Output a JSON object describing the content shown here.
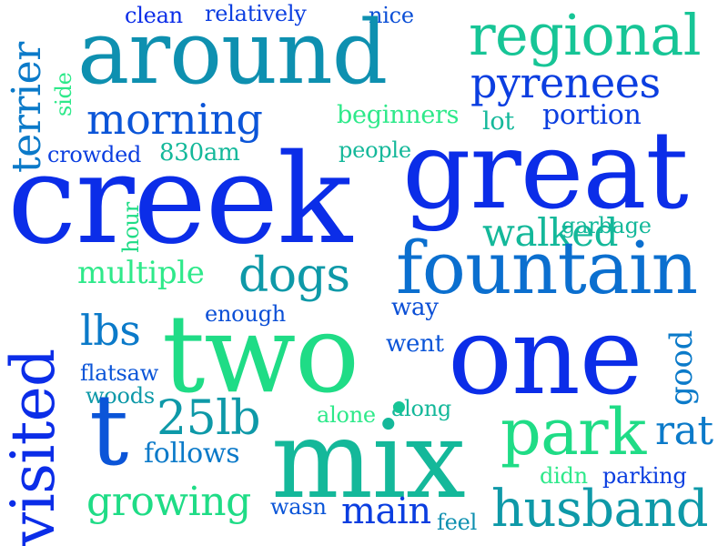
{
  "palette": {
    "blue": "#0b2de8",
    "royal": "#0b55d8",
    "ocean": "#0b7ac9",
    "teal": "#0e99a8",
    "sea": "#14b89a",
    "mint": "#1fdc86",
    "spring": "#2ee98a"
  },
  "words": [
    {
      "text": "clean"
    },
    {
      "text": "relatively"
    },
    {
      "text": "nice"
    },
    {
      "text": "around"
    },
    {
      "text": "regional"
    },
    {
      "text": "pyrenees"
    },
    {
      "text": "morning"
    },
    {
      "text": "beginners"
    },
    {
      "text": "lot"
    },
    {
      "text": "portion"
    },
    {
      "text": "crowded"
    },
    {
      "text": "830am"
    },
    {
      "text": "people"
    },
    {
      "text": "great"
    },
    {
      "text": "creek"
    },
    {
      "text": "terrier"
    },
    {
      "text": "walked"
    },
    {
      "text": "side"
    },
    {
      "text": "garbage"
    },
    {
      "text": "hour"
    },
    {
      "text": "multiple"
    },
    {
      "text": "dogs"
    },
    {
      "text": "fountain"
    },
    {
      "text": "enough"
    },
    {
      "text": "way"
    },
    {
      "text": "lbs"
    },
    {
      "text": "two"
    },
    {
      "text": "one"
    },
    {
      "text": "went"
    },
    {
      "text": "good"
    },
    {
      "text": "visited"
    },
    {
      "text": "flatsaw"
    },
    {
      "text": "woods"
    },
    {
      "text": "t"
    },
    {
      "text": "25lb"
    },
    {
      "text": "alone"
    },
    {
      "text": "along"
    },
    {
      "text": "follows"
    },
    {
      "text": "mix"
    },
    {
      "text": "park"
    },
    {
      "text": "rat"
    },
    {
      "text": "didn"
    },
    {
      "text": "parking"
    },
    {
      "text": "growing"
    },
    {
      "text": "wasn"
    },
    {
      "text": "main"
    },
    {
      "text": "feel"
    },
    {
      "text": "husband"
    }
  ]
}
